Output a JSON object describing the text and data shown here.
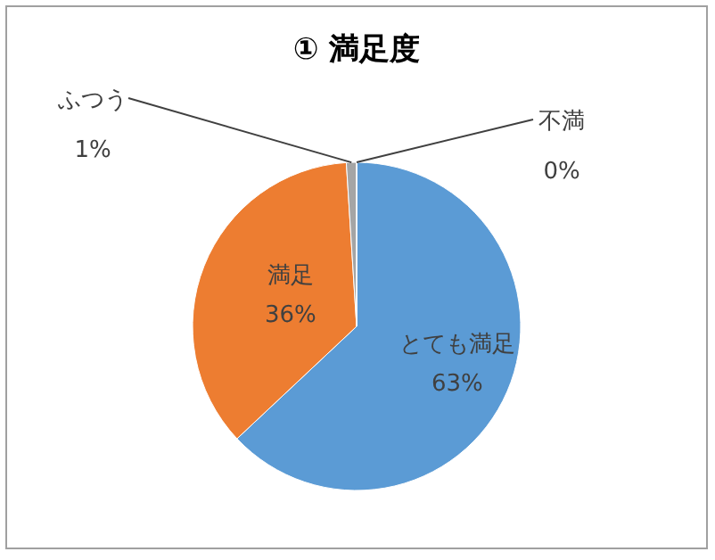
{
  "chart_data": {
    "type": "pie",
    "title": "① 満足度",
    "categories": [
      "とても満足",
      "満足",
      "ふつう",
      "不満"
    ],
    "values": [
      63,
      36,
      1,
      0
    ],
    "value_labels": [
      "63%",
      "36%",
      "1%",
      "0%"
    ],
    "colors": [
      "#5b9bd5",
      "#ed7d31",
      "#a5a5a5",
      "#ffc000"
    ]
  }
}
